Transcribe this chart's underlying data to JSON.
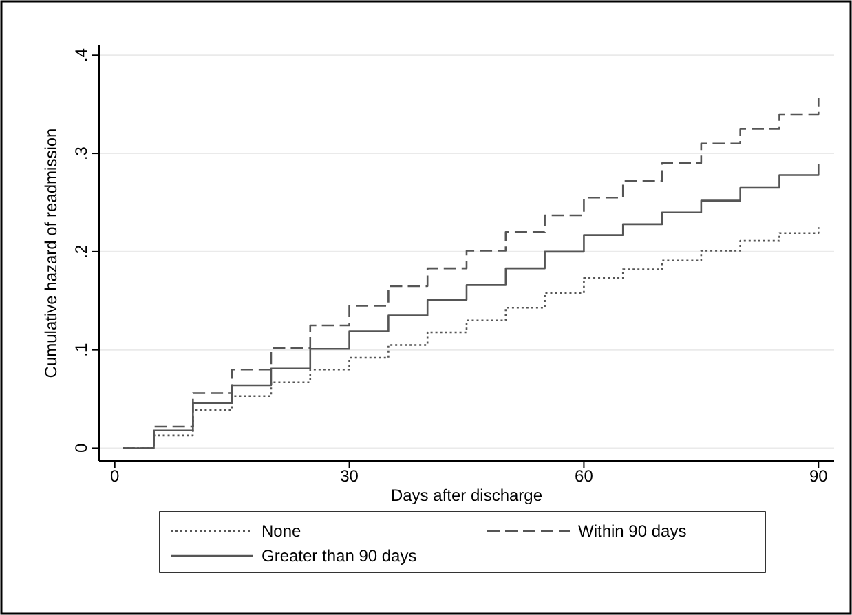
{
  "chart_data": {
    "type": "step",
    "xlabel": "Days after discharge",
    "ylabel": "Cumulative hazard of readmission",
    "xlim": [
      -2,
      92
    ],
    "ylim": [
      -0.013,
      0.41
    ],
    "xticks": [
      0,
      30,
      60,
      90
    ],
    "yticks": [
      0,
      {
        "value": 0.1,
        "label": ".1"
      },
      {
        "value": 0.2,
        "label": ".2"
      },
      {
        "value": 0.3,
        "label": ".3"
      },
      {
        "value": 0.4,
        "label": ".4"
      }
    ],
    "grid": "y",
    "legend": "bottom",
    "x": [
      1,
      5,
      10,
      15,
      20,
      25,
      30,
      35,
      40,
      45,
      50,
      55,
      60,
      65,
      70,
      75,
      80,
      85,
      90
    ],
    "series": [
      {
        "name": "None",
        "color": "#555555",
        "line_style": "dotted",
        "values": [
          0,
          0.013,
          0.039,
          0.053,
          0.067,
          0.08,
          0.092,
          0.105,
          0.118,
          0.13,
          0.143,
          0.158,
          0.173,
          0.182,
          0.191,
          0.201,
          0.211,
          0.219,
          0.225
        ]
      },
      {
        "name": "Within 90 days",
        "color": "#555555",
        "line_style": "dashed",
        "values": [
          0,
          0.022,
          0.056,
          0.08,
          0.102,
          0.125,
          0.145,
          0.165,
          0.183,
          0.201,
          0.22,
          0.237,
          0.255,
          0.272,
          0.29,
          0.31,
          0.325,
          0.34,
          0.356
        ]
      },
      {
        "name": "Greater than 90 days",
        "color": "#555555",
        "line_style": "solid",
        "values": [
          0,
          0.018,
          0.046,
          0.064,
          0.081,
          0.101,
          0.119,
          0.135,
          0.151,
          0.166,
          0.183,
          0.2,
          0.217,
          0.228,
          0.24,
          0.252,
          0.265,
          0.278,
          0.289
        ]
      }
    ]
  }
}
